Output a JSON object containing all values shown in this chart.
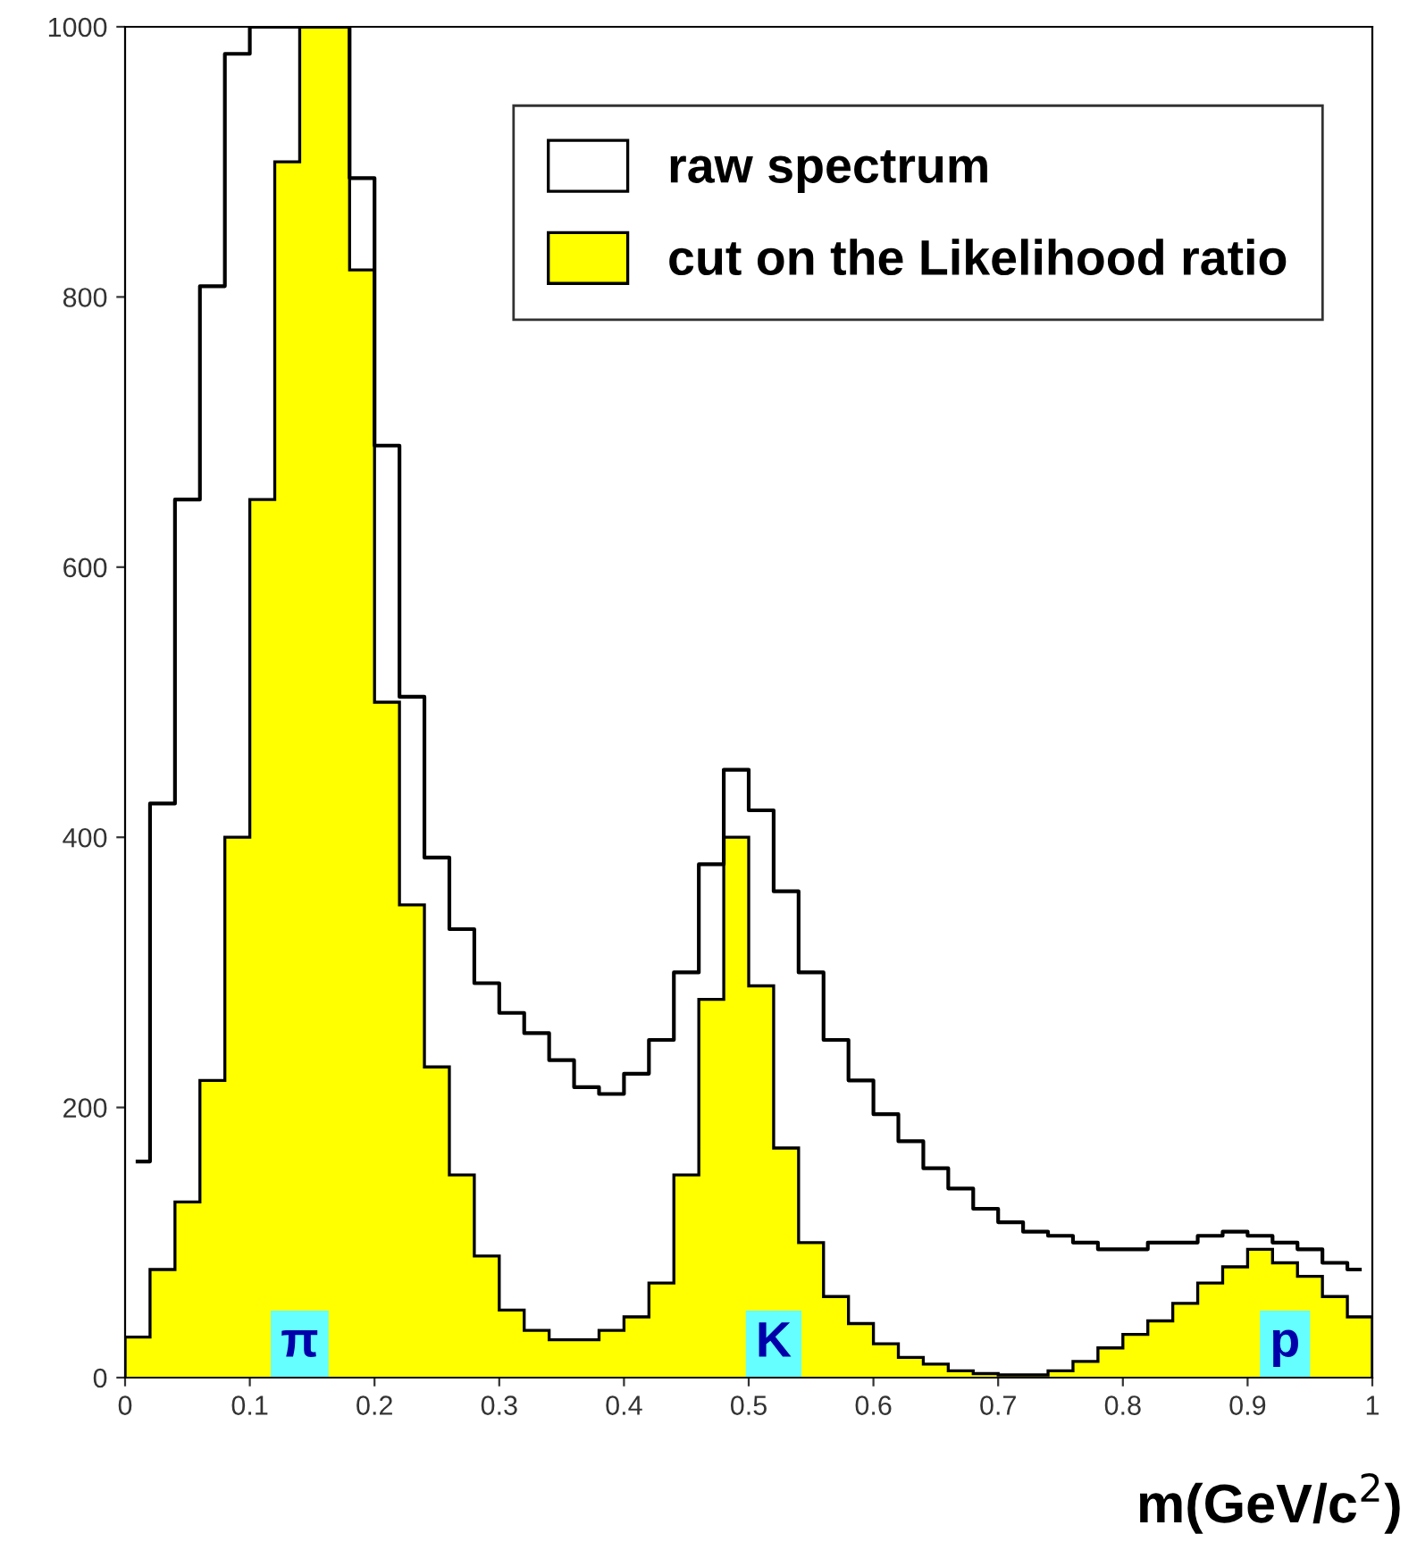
{
  "chart_data": {
    "type": "histogram",
    "bins": [
      0,
      0.02,
      0.04,
      0.06,
      0.08,
      0.1,
      0.12,
      0.14,
      0.16,
      0.18,
      0.2,
      0.22,
      0.24,
      0.26,
      0.28,
      0.3,
      0.32,
      0.34,
      0.36,
      0.38,
      0.4,
      0.42,
      0.44,
      0.46,
      0.48,
      0.5,
      0.52,
      0.54,
      0.56,
      0.58,
      0.6,
      0.62,
      0.64,
      0.66,
      0.68,
      0.7,
      0.72,
      0.74,
      0.76,
      0.78,
      0.8,
      0.82,
      0.84,
      0.86,
      0.88,
      0.9,
      0.92,
      0.94,
      0.96,
      0.98,
      1
    ],
    "series": [
      {
        "name": "raw spectrum",
        "type": "step",
        "color": "#000000",
        "x": [
          0.01,
          0.03,
          0.05,
          0.07,
          0.09,
          0.11,
          0.13,
          0.15,
          0.17,
          0.19,
          0.21,
          0.23,
          0.25,
          0.27,
          0.29,
          0.31,
          0.33,
          0.35,
          0.37,
          0.39,
          0.41,
          0.43,
          0.45,
          0.47,
          0.49,
          0.51,
          0.53,
          0.55,
          0.57,
          0.59,
          0.61,
          0.63,
          0.65,
          0.67,
          0.69,
          0.71,
          0.73,
          0.75,
          0.77,
          0.79,
          0.81,
          0.83,
          0.85,
          0.87,
          0.89,
          0.91,
          0.93,
          0.95,
          0.97,
          0.99
        ],
        "values": [
          160,
          425,
          650,
          808,
          980,
          1000,
          1000,
          1000,
          1000,
          888,
          690,
          504,
          385,
          332,
          292,
          270,
          255,
          235,
          215,
          210,
          225,
          250,
          300,
          380,
          450,
          420,
          360,
          300,
          250,
          220,
          195,
          175,
          155,
          140,
          125,
          115,
          108,
          105,
          100,
          95,
          95,
          100,
          100,
          105,
          108,
          105,
          100,
          95,
          85,
          80
        ]
      },
      {
        "name": "cut on the Likelihood ratio",
        "color": "#ffff00",
        "values": [
          30,
          80,
          130,
          220,
          400,
          650,
          900,
          1000,
          1000,
          820,
          500,
          350,
          230,
          150,
          90,
          50,
          35,
          28,
          28,
          35,
          45,
          70,
          150,
          280,
          400,
          290,
          170,
          100,
          60,
          40,
          25,
          15,
          10,
          5,
          3,
          2,
          2,
          5,
          12,
          22,
          32,
          42,
          55,
          70,
          82,
          95,
          85,
          75,
          60,
          45
        ]
      }
    ],
    "xlabel": "m(GeV/c$^{2}$)",
    "xlim": [
      0,
      1
    ],
    "xticks": [
      0,
      0.1,
      0.2,
      0.3,
      0.4,
      0.5,
      0.6,
      0.7,
      0.8,
      0.9,
      1
    ],
    "ylim": [
      0,
      1000
    ],
    "yticks": [
      0,
      200,
      400,
      600,
      800,
      1000
    ],
    "legend": "top right",
    "annotations": [
      "π",
      "K",
      "p"
    ]
  }
}
